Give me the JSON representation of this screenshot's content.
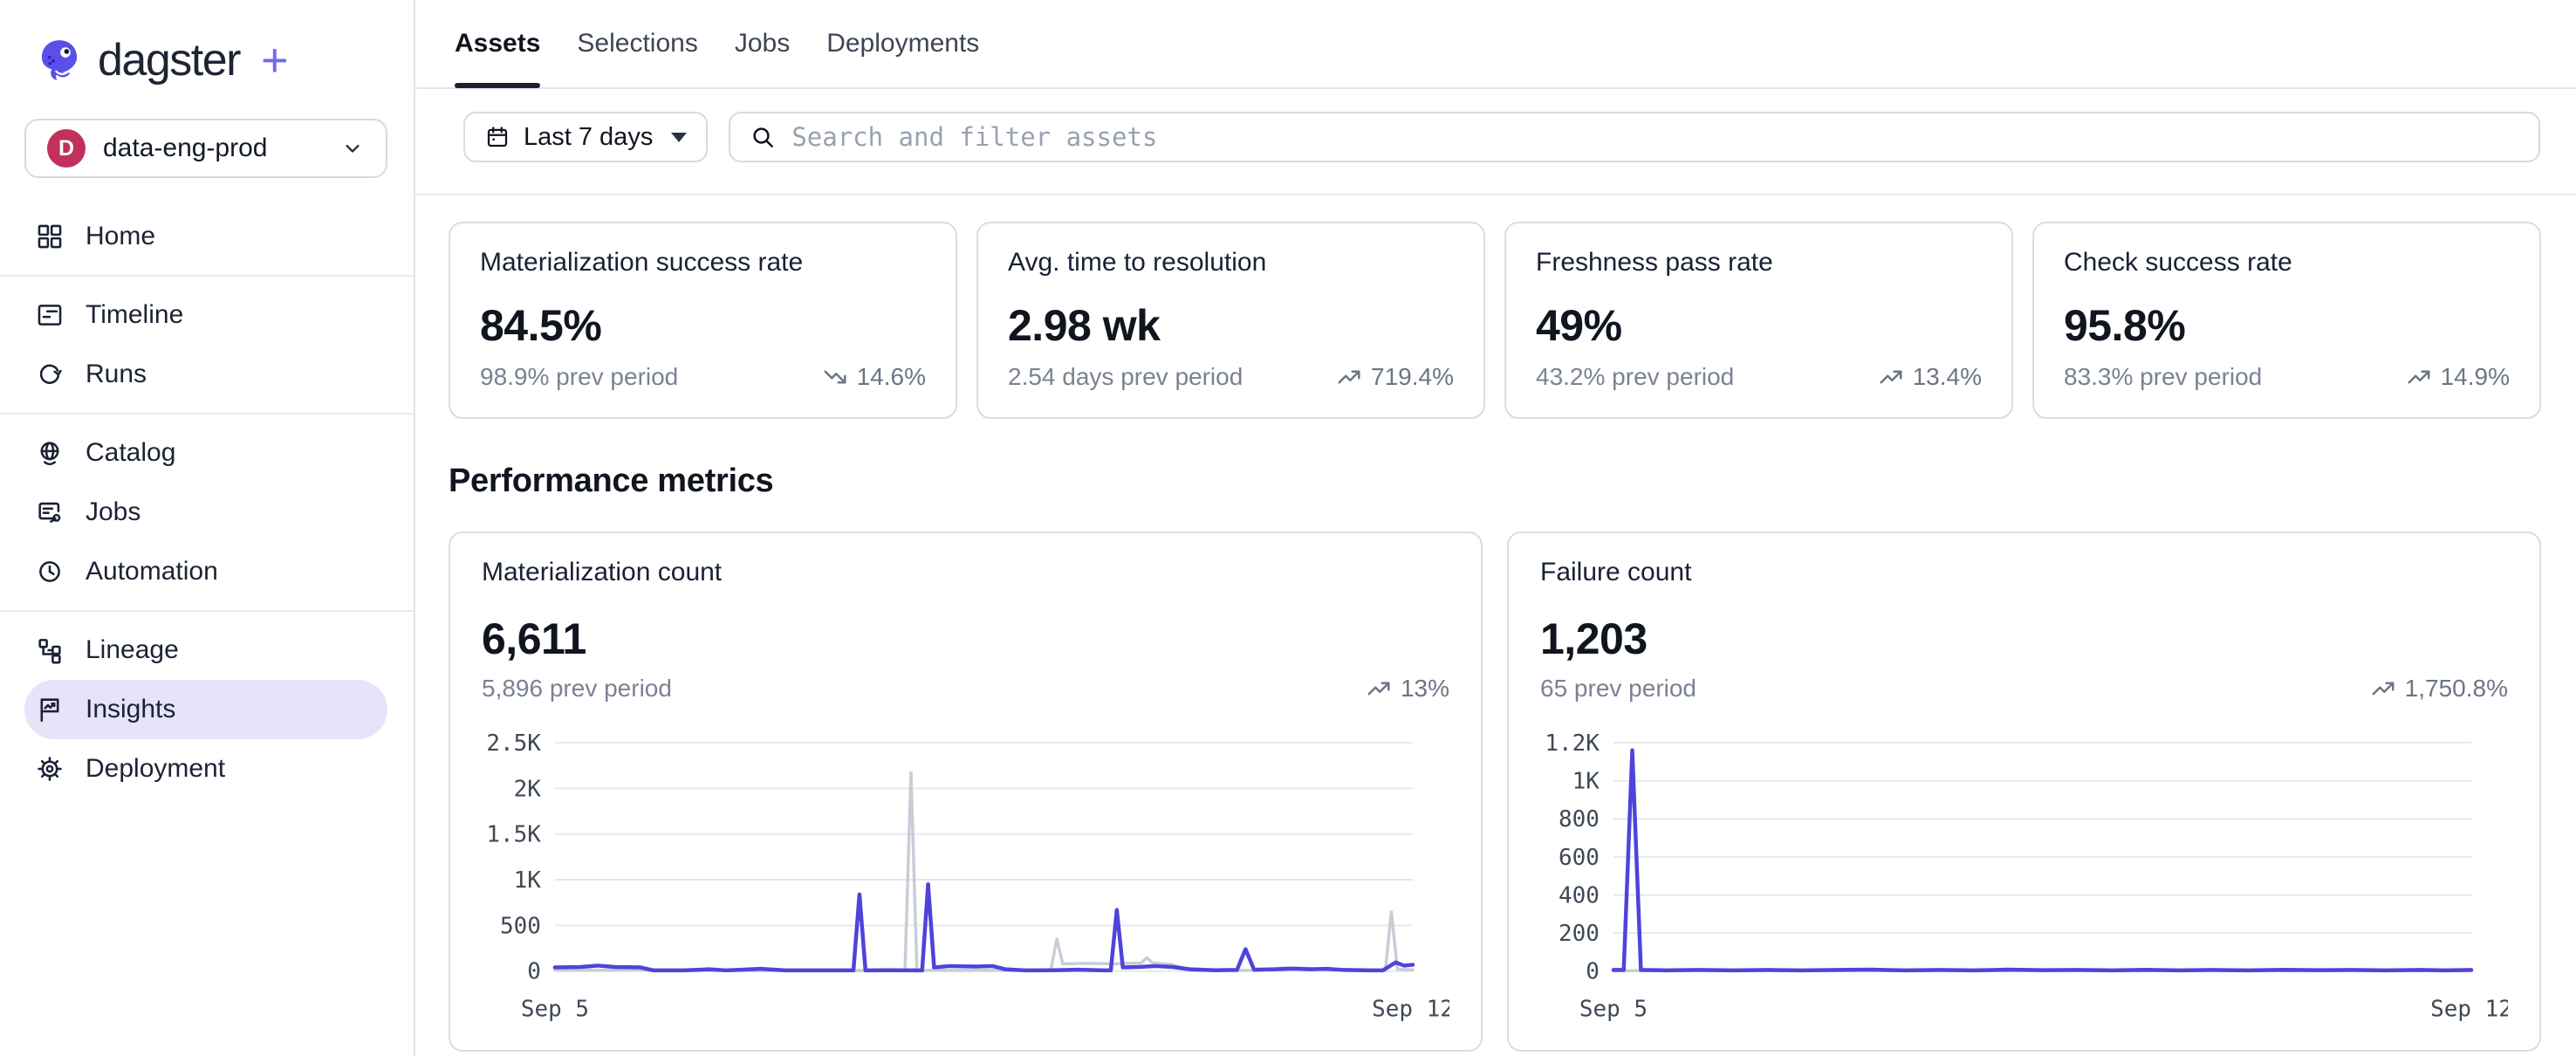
{
  "brand": {
    "name": "dagster",
    "plus": "+"
  },
  "workspace": {
    "initial": "D",
    "name": "data-eng-prod"
  },
  "sidebar": {
    "active": "Insights",
    "items": [
      {
        "label": "Home"
      },
      {
        "label": "Timeline"
      },
      {
        "label": "Runs"
      },
      {
        "label": "Catalog"
      },
      {
        "label": "Jobs"
      },
      {
        "label": "Automation"
      },
      {
        "label": "Lineage"
      },
      {
        "label": "Insights"
      },
      {
        "label": "Deployment"
      }
    ]
  },
  "tabs": {
    "active": "Assets",
    "items": [
      {
        "label": "Assets"
      },
      {
        "label": "Selections"
      },
      {
        "label": "Jobs"
      },
      {
        "label": "Deployments"
      }
    ]
  },
  "filters": {
    "date_range": "Last 7 days"
  },
  "search": {
    "placeholder": "Search and filter assets"
  },
  "metric_cards": [
    {
      "title": "Materialization success rate",
      "value": "84.5%",
      "prev": "98.9% prev period",
      "delta": "14.6%",
      "direction": "down"
    },
    {
      "title": "Avg. time to resolution",
      "value": "2.98 wk",
      "prev": "2.54 days prev period",
      "delta": "719.4%",
      "direction": "up"
    },
    {
      "title": "Freshness pass rate",
      "value": "49%",
      "prev": "43.2% prev period",
      "delta": "13.4%",
      "direction": "up"
    },
    {
      "title": "Check success rate",
      "value": "95.8%",
      "prev": "83.3% prev period",
      "delta": "14.9%",
      "direction": "up"
    }
  ],
  "section_title": "Performance metrics",
  "chart_data": [
    {
      "type": "line",
      "title": "Materialization count",
      "value": "6,611",
      "prev": "5,896 prev period",
      "delta": "13%",
      "direction": "up",
      "x_axis": [
        "Sep 5",
        "Sep 12"
      ],
      "y_max": 2500,
      "y_ticks": [
        [
          0,
          "0"
        ],
        [
          500,
          "500"
        ],
        [
          1000,
          "1K"
        ],
        [
          1500,
          "1.5K"
        ],
        [
          2000,
          "2K"
        ],
        [
          2500,
          "2.5K"
        ]
      ],
      "grid": true,
      "legend": "none",
      "series": [
        {
          "name": "previous period",
          "color": "#C8CDD8",
          "width": 3.5,
          "points": [
            [
              0,
              12
            ],
            [
              0.05,
              10
            ],
            [
              0.1,
              12
            ],
            [
              0.15,
              6
            ],
            [
              0.2,
              8
            ],
            [
              0.25,
              6
            ],
            [
              0.3,
              8
            ],
            [
              0.35,
              6
            ],
            [
              0.4,
              6
            ],
            [
              0.408,
              8
            ],
            [
              0.415,
              2170
            ],
            [
              0.422,
              10
            ],
            [
              0.45,
              8
            ],
            [
              0.5,
              10
            ],
            [
              0.54,
              6
            ],
            [
              0.578,
              8
            ],
            [
              0.585,
              350
            ],
            [
              0.592,
              80
            ],
            [
              0.62,
              85
            ],
            [
              0.65,
              80
            ],
            [
              0.683,
              90
            ],
            [
              0.69,
              145
            ],
            [
              0.697,
              90
            ],
            [
              0.72,
              70
            ],
            [
              0.74,
              10
            ],
            [
              0.78,
              8
            ],
            [
              0.82,
              10
            ],
            [
              0.85,
              35
            ],
            [
              0.88,
              30
            ],
            [
              0.91,
              10
            ],
            [
              0.94,
              8
            ],
            [
              0.968,
              8
            ],
            [
              0.975,
              650
            ],
            [
              0.982,
              20
            ],
            [
              1,
              12
            ]
          ]
        },
        {
          "name": "current period",
          "color": "#4F43DB",
          "width": 4.5,
          "points": [
            [
              0,
              40
            ],
            [
              0.03,
              45
            ],
            [
              0.05,
              60
            ],
            [
              0.07,
              45
            ],
            [
              0.1,
              40
            ],
            [
              0.115,
              8
            ],
            [
              0.15,
              8
            ],
            [
              0.18,
              20
            ],
            [
              0.2,
              8
            ],
            [
              0.24,
              25
            ],
            [
              0.27,
              8
            ],
            [
              0.3,
              8
            ],
            [
              0.33,
              8
            ],
            [
              0.348,
              8
            ],
            [
              0.355,
              840
            ],
            [
              0.362,
              8
            ],
            [
              0.39,
              10
            ],
            [
              0.42,
              8
            ],
            [
              0.428,
              8
            ],
            [
              0.435,
              950
            ],
            [
              0.442,
              40
            ],
            [
              0.46,
              55
            ],
            [
              0.49,
              50
            ],
            [
              0.51,
              55
            ],
            [
              0.525,
              20
            ],
            [
              0.55,
              8
            ],
            [
              0.58,
              10
            ],
            [
              0.61,
              15
            ],
            [
              0.64,
              8
            ],
            [
              0.648,
              8
            ],
            [
              0.655,
              670
            ],
            [
              0.662,
              40
            ],
            [
              0.68,
              45
            ],
            [
              0.7,
              55
            ],
            [
              0.72,
              45
            ],
            [
              0.74,
              20
            ],
            [
              0.77,
              10
            ],
            [
              0.795,
              12
            ],
            [
              0.805,
              240
            ],
            [
              0.815,
              15
            ],
            [
              0.84,
              20
            ],
            [
              0.86,
              28
            ],
            [
              0.88,
              20
            ],
            [
              0.9,
              25
            ],
            [
              0.92,
              12
            ],
            [
              0.95,
              8
            ],
            [
              0.965,
              8
            ],
            [
              0.98,
              95
            ],
            [
              0.99,
              60
            ],
            [
              1,
              70
            ]
          ]
        }
      ]
    },
    {
      "type": "line",
      "title": "Failure count",
      "value": "1,203",
      "prev": "65 prev period",
      "delta": "1,750.8%",
      "direction": "up",
      "x_axis": [
        "Sep 5",
        "Sep 12"
      ],
      "y_max": 1200,
      "y_ticks": [
        [
          0,
          "0"
        ],
        [
          200,
          "200"
        ],
        [
          400,
          "400"
        ],
        [
          600,
          "600"
        ],
        [
          800,
          "800"
        ],
        [
          1000,
          "1K"
        ],
        [
          1200,
          "1.2K"
        ]
      ],
      "grid": true,
      "legend": "none",
      "series": [
        {
          "name": "previous period",
          "color": "#C8CDD8",
          "width": 3.5,
          "points": [
            [
              0,
              2
            ],
            [
              0.1,
              3
            ],
            [
              0.2,
              2
            ],
            [
              0.3,
              3
            ],
            [
              0.4,
              2
            ],
            [
              0.5,
              3
            ],
            [
              0.6,
              2
            ],
            [
              0.7,
              3
            ],
            [
              0.8,
              2
            ],
            [
              0.9,
              3
            ],
            [
              1,
              2
            ]
          ]
        },
        {
          "name": "current period",
          "color": "#4F43DB",
          "width": 4.5,
          "points": [
            [
              0,
              6
            ],
            [
              0.012,
              6
            ],
            [
              0.022,
              1160
            ],
            [
              0.032,
              6
            ],
            [
              0.06,
              4
            ],
            [
              0.1,
              6
            ],
            [
              0.14,
              4
            ],
            [
              0.18,
              6
            ],
            [
              0.22,
              4
            ],
            [
              0.26,
              6
            ],
            [
              0.3,
              8
            ],
            [
              0.34,
              4
            ],
            [
              0.38,
              6
            ],
            [
              0.42,
              4
            ],
            [
              0.46,
              8
            ],
            [
              0.5,
              5
            ],
            [
              0.54,
              6
            ],
            [
              0.58,
              4
            ],
            [
              0.62,
              7
            ],
            [
              0.66,
              4
            ],
            [
              0.7,
              6
            ],
            [
              0.74,
              4
            ],
            [
              0.78,
              7
            ],
            [
              0.82,
              5
            ],
            [
              0.86,
              6
            ],
            [
              0.9,
              4
            ],
            [
              0.94,
              6
            ],
            [
              0.97,
              4
            ],
            [
              1,
              6
            ]
          ]
        }
      ]
    }
  ],
  "colors": {
    "accent": "#4F43DB",
    "prev_series": "#C8CDD8",
    "grid": "#E7E8EE",
    "tick_text": "#3F4855",
    "active_pill": "#E7E3F9",
    "badge": "#C2315C",
    "card_border": "#D9DCE4",
    "gray_text": "#7A8292"
  }
}
